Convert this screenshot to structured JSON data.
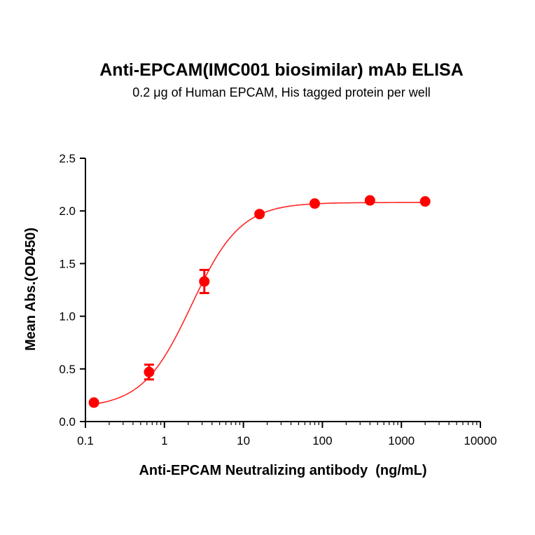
{
  "chart_data": {
    "type": "scatter",
    "title": "Anti-EPCAM(IMC001 biosimilar) mAb ELISA",
    "subtitle": "0.2 μg of Human EPCAM, His tagged protein per well",
    "xlabel": "Anti-EPCAM Neutralizing antibody  (ng/mL)",
    "ylabel": "Mean Abs.(OD450)",
    "x_scale": "log",
    "xlim": [
      0.1,
      10000
    ],
    "ylim": [
      0,
      2.5
    ],
    "x_ticks": [
      "0.1",
      "1",
      "10",
      "100",
      "1000",
      "10000"
    ],
    "y_ticks": [
      "0.0",
      "0.5",
      "1.0",
      "1.5",
      "2.0",
      "2.5"
    ],
    "series": [
      {
        "color": "#ff0000",
        "x": [
          0.128,
          0.64,
          3.2,
          16,
          80,
          400,
          2000
        ],
        "y": [
          0.18,
          0.47,
          1.33,
          1.97,
          2.07,
          2.1,
          2.09
        ],
        "error": [
          0.01,
          0.07,
          0.11,
          0.02,
          0.01,
          0.01,
          0.01
        ]
      }
    ],
    "fit": {
      "model": "4PL",
      "bottom": 0.13,
      "top": 2.08,
      "ec50": 2.2,
      "hill": 1.4
    }
  }
}
